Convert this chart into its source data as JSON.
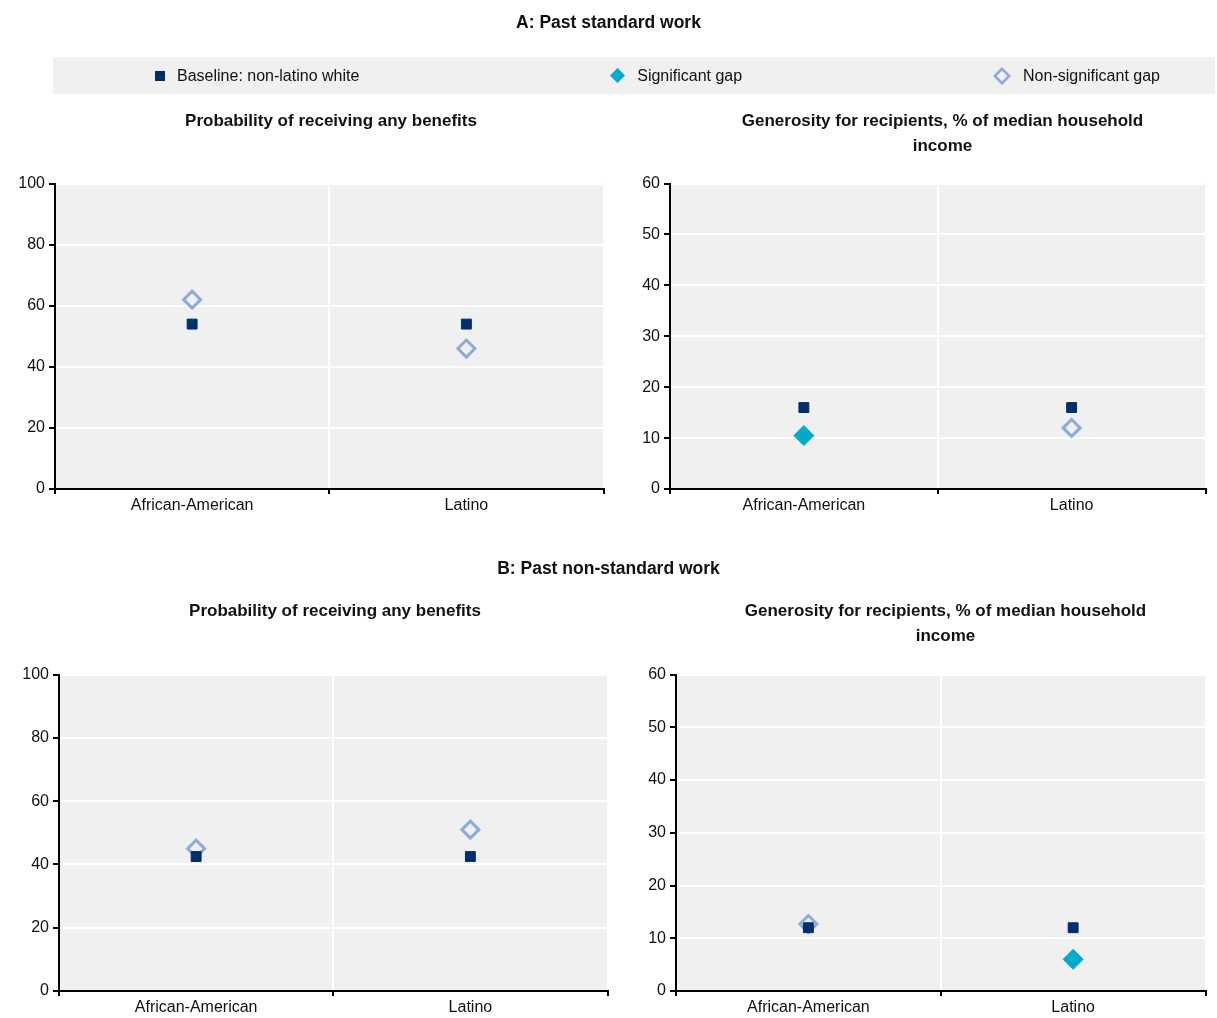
{
  "chart_data": [
    {
      "type": "other",
      "title": "A: Past standard work"
    },
    {
      "type": "scatter",
      "title": "Probability of receiving any benefits",
      "categories": [
        "African-American",
        "Latino"
      ],
      "ylim": [
        0,
        100
      ],
      "yticks": [
        0,
        20,
        40,
        60,
        80,
        100
      ],
      "grid": true,
      "legend": "top",
      "series": [
        {
          "name": "Baseline: non-latino white",
          "color": "#002f6c",
          "marker": "square",
          "values": [
            54,
            54
          ]
        },
        {
          "name": "Significant gap",
          "color": "#00aacc",
          "marker": "diamond",
          "values": [
            null,
            null
          ]
        },
        {
          "name": "Non-significant gap",
          "color": "#8eaadb",
          "marker": "diamond-open",
          "values": [
            62,
            46
          ]
        }
      ]
    },
    {
      "type": "scatter",
      "title": "Generosity for recipients, % of median household income",
      "categories": [
        "African-American",
        "Latino"
      ],
      "ylim": [
        0,
        60
      ],
      "yticks": [
        0,
        10,
        20,
        30,
        40,
        50,
        60
      ],
      "grid": true,
      "series": [
        {
          "color": "#002f6c",
          "marker": "square",
          "values": [
            16,
            16
          ]
        },
        {
          "color": "#00aacc",
          "marker": "diamond",
          "values": [
            10.5,
            null
          ]
        },
        {
          "color": "#8eaadb",
          "marker": "diamond-open",
          "values": [
            null,
            12
          ]
        }
      ]
    },
    {
      "type": "other",
      "title": "B: Past non-standard work"
    },
    {
      "type": "scatter",
      "title": "Probability of receiving any benefits",
      "categories": [
        "African-American",
        "Latino"
      ],
      "ylim": [
        0,
        100
      ],
      "yticks": [
        0,
        20,
        40,
        60,
        80,
        100
      ],
      "grid": true,
      "series": [
        {
          "color": "#002f6c",
          "marker": "square",
          "values": [
            42.5,
            42.5
          ]
        },
        {
          "color": "#00aacc",
          "marker": "diamond",
          "values": [
            null,
            null
          ]
        },
        {
          "color": "#8eaadb",
          "marker": "diamond-open",
          "values": [
            45,
            51
          ]
        }
      ]
    },
    {
      "type": "scatter",
      "title": "Generosity for recipients, % of median household income",
      "categories": [
        "African-American",
        "Latino"
      ],
      "ylim": [
        0,
        60
      ],
      "yticks": [
        0,
        10,
        20,
        30,
        40,
        50,
        60
      ],
      "grid": true,
      "series": [
        {
          "color": "#002f6c",
          "marker": "square",
          "values": [
            12,
            12
          ]
        },
        {
          "color": "#00aacc",
          "marker": "diamond",
          "values": [
            null,
            6
          ]
        },
        {
          "color": "#8eaadb",
          "marker": "diamond-open",
          "values": [
            12.7,
            null
          ]
        }
      ]
    }
  ]
}
